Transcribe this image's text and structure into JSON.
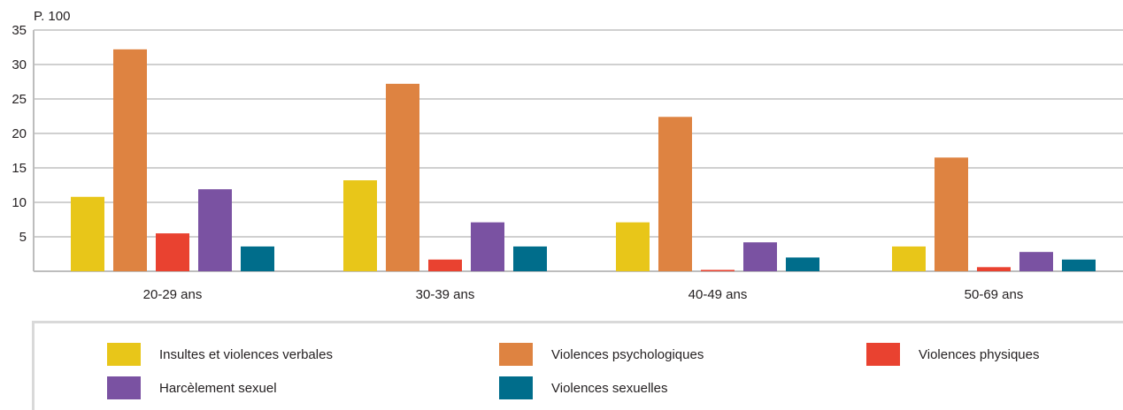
{
  "chart_data": {
    "type": "bar",
    "unit_label": "P. 100",
    "categories": [
      "20-29 ans",
      "30-39 ans",
      "40-49 ans",
      "50-69 ans"
    ],
    "series": [
      {
        "name": "Insultes et violences verbales",
        "color": "#e8c619",
        "values": [
          10.8,
          13.2,
          7.1,
          3.6
        ]
      },
      {
        "name": "Violences psychologiques",
        "color": "#de8341",
        "values": [
          32.2,
          27.2,
          22.4,
          16.5
        ]
      },
      {
        "name": "Violences physiques",
        "color": "#e94230",
        "values": [
          5.5,
          1.7,
          0.2,
          0.6
        ]
      },
      {
        "name": "Harcèlement sexuel",
        "color": "#7a52a2",
        "values": [
          11.9,
          7.1,
          4.2,
          2.8
        ]
      },
      {
        "name": "Violences sexuelles",
        "color": "#006d8b",
        "values": [
          3.6,
          3.6,
          2.0,
          1.7
        ]
      }
    ],
    "ylim": [
      0,
      35
    ],
    "yticks": [
      5,
      10,
      15,
      20,
      25,
      30,
      35
    ],
    "grid": true,
    "legend_position": "bottom"
  }
}
